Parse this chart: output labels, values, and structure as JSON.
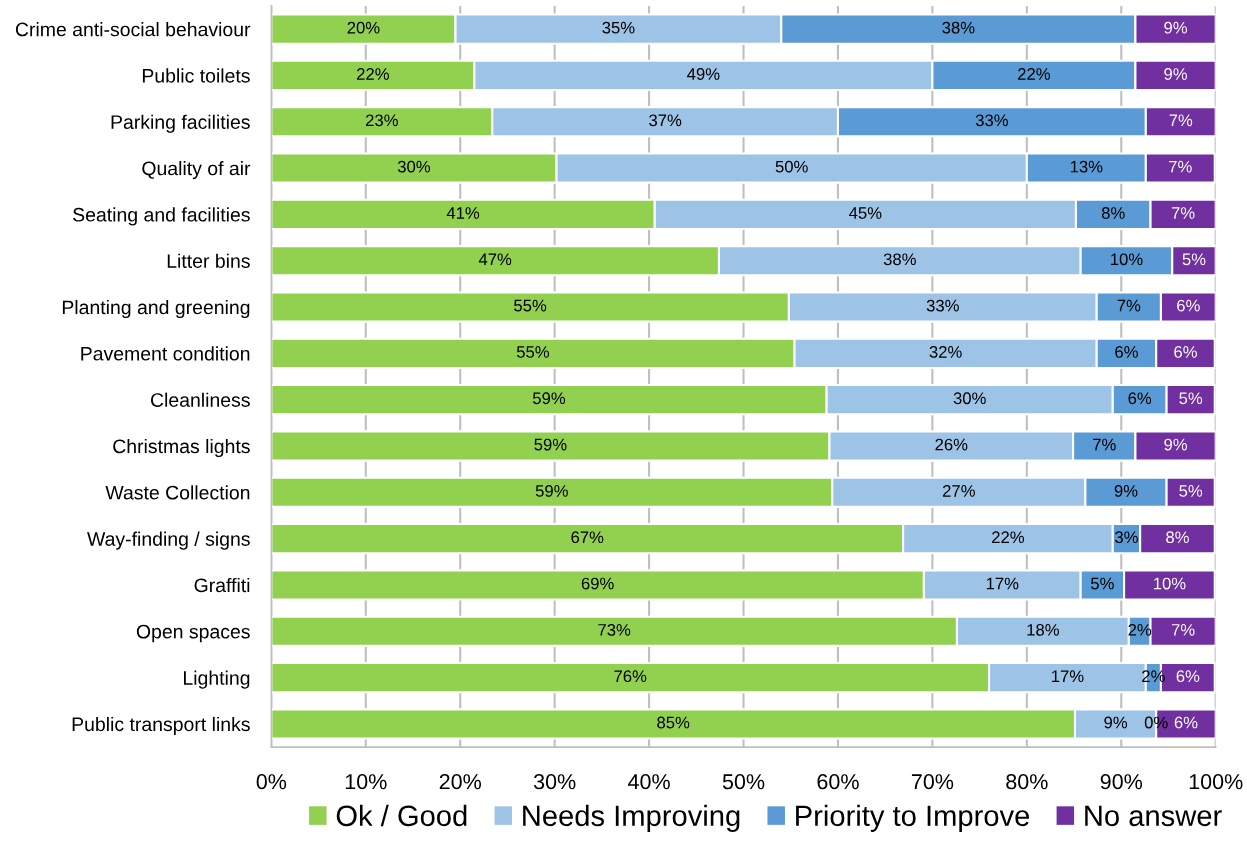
{
  "chart_data": {
    "type": "bar",
    "orientation": "horizontal",
    "stacked": true,
    "categories": [
      "Crime anti-social behaviour",
      "Public toilets",
      "Parking facilities",
      "Quality of air",
      "Seating and facilities",
      "Litter bins",
      "Planting and greening",
      "Pavement condition",
      "Cleanliness",
      "Christmas lights",
      "Waste Collection",
      "Way-finding / signs",
      "Graffiti",
      "Open spaces",
      "Lighting",
      "Public transport links"
    ],
    "series": [
      {
        "name": "Ok / Good",
        "color": "#92d050",
        "values": [
          19.5,
          21.5,
          23.4,
          30.2,
          40.6,
          47.4,
          54.8,
          55.4,
          58.8,
          59.1,
          59.4,
          66.9,
          69.1,
          72.6,
          76.0,
          85.1
        ],
        "value_labels": [
          "20%",
          "22%",
          "23%",
          "30%",
          "41%",
          "47%",
          "55%",
          "55%",
          "59%",
          "59%",
          "59%",
          "67%",
          "69%",
          "73%",
          "76%",
          "85%"
        ]
      },
      {
        "name": "Needs Improving",
        "color": "#9dc3e6",
        "values": [
          34.5,
          48.5,
          36.6,
          49.8,
          44.6,
          38.3,
          32.6,
          32.0,
          30.3,
          25.8,
          26.8,
          22.2,
          16.6,
          18.2,
          16.6,
          8.6
        ],
        "value_labels": [
          "35%",
          "49%",
          "37%",
          "50%",
          "45%",
          "38%",
          "33%",
          "32%",
          "30%",
          "26%",
          "27%",
          "22%",
          "17%",
          "18%",
          "17%",
          "9%"
        ]
      },
      {
        "name": "Priority to Improve",
        "color": "#5b9bd5",
        "values": [
          37.5,
          21.5,
          32.6,
          12.6,
          7.9,
          9.7,
          6.8,
          6.3,
          5.7,
          6.6,
          8.6,
          2.9,
          4.6,
          2.3,
          1.6,
          0
        ],
        "value_labels": [
          "38%",
          "22%",
          "33%",
          "13%",
          "8%",
          "10%",
          "7%",
          "6%",
          "6%",
          "7%",
          "9%",
          "3%",
          "5%",
          "2%",
          "2%",
          "0%"
        ]
      },
      {
        "name": "No answer",
        "color": "#7030a0",
        "values": [
          8.5,
          8.5,
          7.4,
          7.3,
          6.9,
          4.6,
          5.8,
          6.2,
          5.1,
          8.5,
          5.1,
          7.9,
          9.6,
          6.9,
          5.7,
          6.3
        ],
        "value_labels": [
          "9%",
          "9%",
          "7%",
          "7%",
          "7%",
          "5%",
          "6%",
          "6%",
          "5%",
          "9%",
          "5%",
          "8%",
          "10%",
          "7%",
          "6%",
          "6%"
        ]
      }
    ],
    "xlim": [
      0,
      100
    ],
    "xticks": [
      {
        "value": 0,
        "label": "0%"
      },
      {
        "value": 10,
        "label": "10%"
      },
      {
        "value": 20,
        "label": "20%"
      },
      {
        "value": 30,
        "label": "30%"
      },
      {
        "value": 40,
        "label": "40%"
      },
      {
        "value": 50,
        "label": "50%"
      },
      {
        "value": 60,
        "label": "60%"
      },
      {
        "value": 70,
        "label": "70%"
      },
      {
        "value": 80,
        "label": "80%"
      },
      {
        "value": 90,
        "label": "90%"
      },
      {
        "value": 100,
        "label": "100%"
      }
    ],
    "grid": "x",
    "legend": "bottom"
  }
}
